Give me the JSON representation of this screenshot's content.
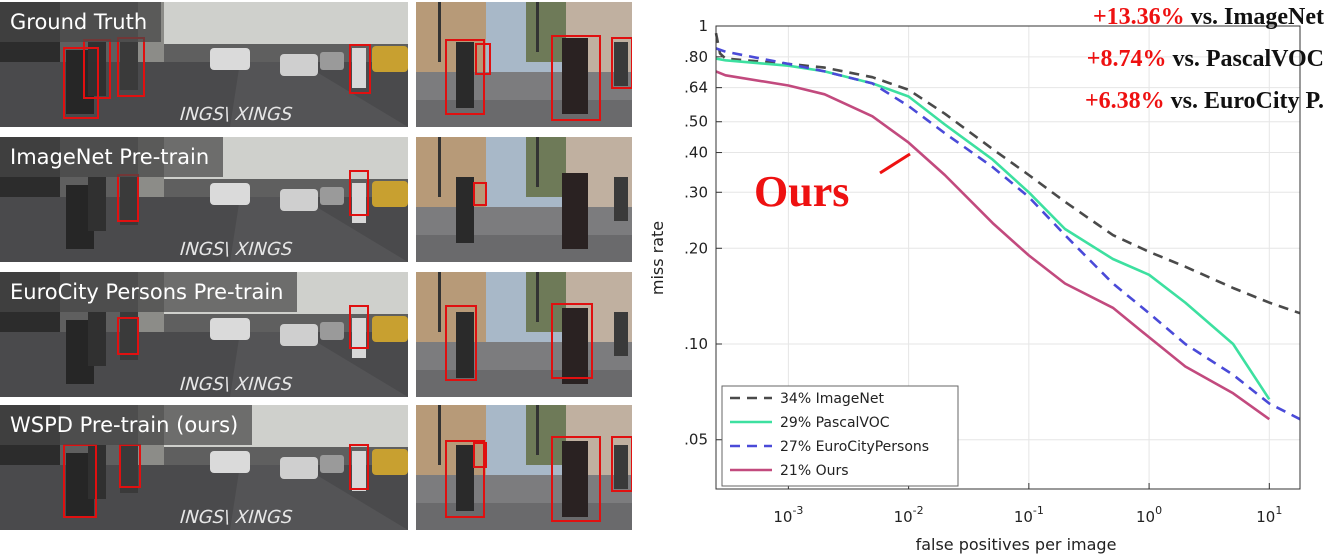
{
  "image_rows": [
    {
      "label": "Ground Truth"
    },
    {
      "label": "ImageNet Pre-train"
    },
    {
      "label": "EuroCity Persons Pre-train"
    },
    {
      "label": "WSPD Pre-train (ours)"
    }
  ],
  "improvements": [
    {
      "pct": "+13.36%",
      "text": "vs. ImageNet"
    },
    {
      "pct": "+8.74%",
      "text": "vs. PascalVOC"
    },
    {
      "pct": "+6.38%",
      "text": "vs. EuroCity P."
    }
  ],
  "callout": "Ours",
  "colors": {
    "ours": "#c24a7e",
    "accent_red": "#ee1111",
    "imagenet": "#4a4a4a",
    "pascalvoc": "#3de0a0",
    "eurocity": "#4a4ad8",
    "box": "#e01010"
  },
  "chart_data": {
    "type": "line",
    "xlabel": "false positives per image",
    "ylabel": "miss rate",
    "xscale": "log",
    "yscale": "log",
    "xlim": [
      0.00025,
      18
    ],
    "ylim": [
      0.035,
      1
    ],
    "xticks": [
      {
        "value": 0.001,
        "base": "10",
        "exp": "-3"
      },
      {
        "value": 0.01,
        "base": "10",
        "exp": "-2"
      },
      {
        "value": 0.1,
        "base": "10",
        "exp": "-1"
      },
      {
        "value": 1,
        "base": "10",
        "exp": "0"
      },
      {
        "value": 10,
        "base": "10",
        "exp": "1"
      }
    ],
    "yticks": [
      {
        "value": 1,
        "label": "1"
      },
      {
        "value": 0.8,
        "label": ".80"
      },
      {
        "value": 0.64,
        "label": ".64"
      },
      {
        "value": 0.5,
        "label": ".50"
      },
      {
        "value": 0.4,
        "label": ".40"
      },
      {
        "value": 0.3,
        "label": ".30"
      },
      {
        "value": 0.2,
        "label": ".20"
      },
      {
        "value": 0.1,
        "label": ".10"
      },
      {
        "value": 0.05,
        "label": ".05"
      }
    ],
    "grid": true,
    "legend_position": "bottom-left",
    "series": [
      {
        "name": "34% ImageNet",
        "color": "#4a4a4a",
        "style": "dashed",
        "x": [
          0.00025,
          0.00027,
          0.0003,
          0.001,
          0.002,
          0.005,
          0.01,
          0.02,
          0.05,
          0.1,
          0.2,
          0.5,
          1,
          2,
          5,
          10,
          18
        ],
        "y": [
          0.95,
          0.82,
          0.79,
          0.76,
          0.74,
          0.69,
          0.63,
          0.53,
          0.41,
          0.34,
          0.28,
          0.22,
          0.195,
          0.175,
          0.15,
          0.135,
          0.125
        ]
      },
      {
        "name": "29% PascalVOC",
        "color": "#3de0a0",
        "style": "solid",
        "x": [
          0.00025,
          0.0003,
          0.001,
          0.002,
          0.005,
          0.01,
          0.02,
          0.05,
          0.1,
          0.2,
          0.5,
          1,
          2,
          5,
          10
        ],
        "y": [
          0.79,
          0.78,
          0.75,
          0.72,
          0.66,
          0.6,
          0.49,
          0.38,
          0.3,
          0.23,
          0.185,
          0.165,
          0.135,
          0.1,
          0.067
        ]
      },
      {
        "name": "27% EuroCityPersons",
        "color": "#4a4ad8",
        "style": "dashed",
        "x": [
          0.00025,
          0.0003,
          0.001,
          0.002,
          0.005,
          0.01,
          0.02,
          0.05,
          0.1,
          0.2,
          0.5,
          1,
          2,
          5,
          10,
          18
        ],
        "y": [
          0.85,
          0.83,
          0.76,
          0.72,
          0.66,
          0.56,
          0.46,
          0.36,
          0.29,
          0.22,
          0.155,
          0.125,
          0.1,
          0.08,
          0.065,
          0.058
        ]
      },
      {
        "name": "21% Ours",
        "color": "#c24a7e",
        "style": "solid",
        "x": [
          0.00025,
          0.0003,
          0.001,
          0.002,
          0.005,
          0.01,
          0.02,
          0.05,
          0.1,
          0.2,
          0.5,
          1,
          2,
          5,
          10
        ],
        "y": [
          0.72,
          0.7,
          0.65,
          0.61,
          0.52,
          0.43,
          0.34,
          0.24,
          0.19,
          0.155,
          0.13,
          0.105,
          0.085,
          0.07,
          0.058
        ]
      }
    ]
  }
}
